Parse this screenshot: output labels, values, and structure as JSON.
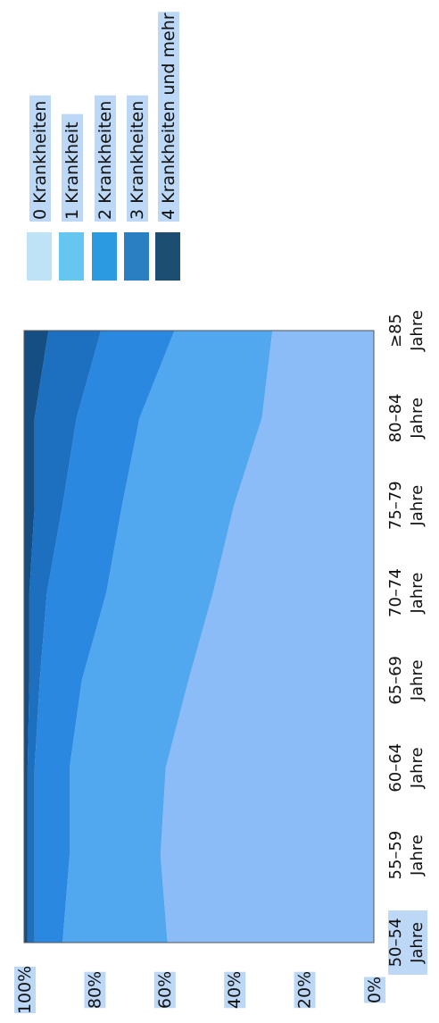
{
  "chart_data": {
    "type": "area",
    "stacked": true,
    "percent": true,
    "orientation": "rotated-90",
    "categories": [
      [
        "50–54",
        "Jahre"
      ],
      [
        "55–59",
        "Jahre"
      ],
      [
        "60–64",
        "Jahre"
      ],
      [
        "65–69",
        "Jahre"
      ],
      [
        "70–74",
        "Jahre"
      ],
      [
        "75–79",
        "Jahre"
      ],
      [
        "80–84",
        "Jahre"
      ],
      [
        "≥85",
        "Jahre"
      ]
    ],
    "series": [
      {
        "name": "0 Krankheiten",
        "values": [
          59,
          61,
          59.5,
          53,
          46,
          40,
          32,
          29
        ]
      },
      {
        "name": "1 Krankheit",
        "values": [
          30,
          26,
          27.5,
          30.5,
          30.5,
          32,
          35,
          28
        ]
      },
      {
        "name": "2 Krankheiten",
        "values": [
          8,
          10,
          10,
          12,
          17,
          17,
          18,
          21
        ]
      },
      {
        "name": "3 Krankheiten",
        "values": [
          2,
          2,
          2,
          3,
          5,
          8,
          12,
          15
        ]
      },
      {
        "name": "4 Krankheiten und mehr",
        "values": [
          1,
          1,
          1,
          1.5,
          1.5,
          3,
          3,
          7
        ]
      }
    ],
    "area_colors": [
      "#8cbcf8",
      "#51a8ef",
      "#2a88e0",
      "#1d6fc0",
      "#154e82"
    ],
    "legend_colors": [
      "#bee3f7",
      "#66c6f0",
      "#2c9ae0",
      "#2a7ec2",
      "#1c4e72"
    ],
    "y_ticks": [
      "0%",
      "20%",
      "40%",
      "60%",
      "80%",
      "100%"
    ],
    "ylim": [
      0,
      100
    ],
    "legend_position": "top"
  }
}
